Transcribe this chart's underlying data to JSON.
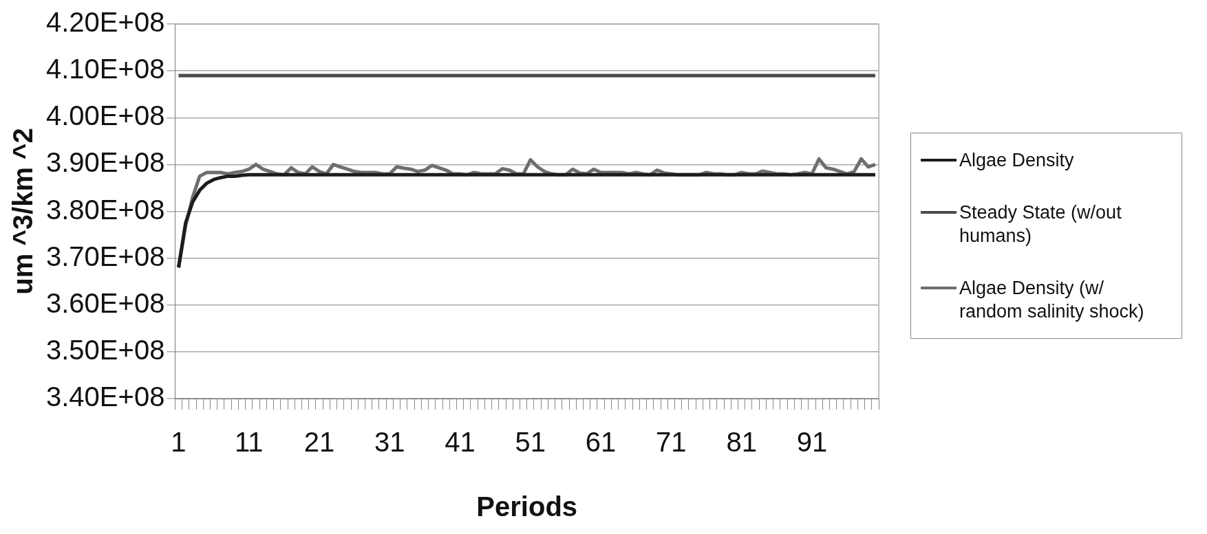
{
  "chart_data": {
    "type": "line",
    "xlabel": "Periods",
    "ylabel": "um ^3/km ^2",
    "categories": [
      "1",
      null,
      null,
      null,
      null,
      null,
      null,
      null,
      null,
      null,
      "11",
      null,
      null,
      null,
      null,
      null,
      null,
      null,
      null,
      null,
      "21",
      null,
      null,
      null,
      null,
      null,
      null,
      null,
      null,
      null,
      "31",
      null,
      null,
      null,
      null,
      null,
      null,
      null,
      null,
      null,
      "41",
      null,
      null,
      null,
      null,
      null,
      null,
      null,
      null,
      null,
      "51",
      null,
      null,
      null,
      null,
      null,
      null,
      null,
      null,
      null,
      "61",
      null,
      null,
      null,
      null,
      null,
      null,
      null,
      null,
      null,
      "71",
      null,
      null,
      null,
      null,
      null,
      null,
      null,
      null,
      null,
      "81",
      null,
      null,
      null,
      null,
      null,
      null,
      null,
      null,
      null,
      "91",
      null,
      null,
      null,
      null,
      null,
      null,
      null,
      null,
      null
    ],
    "series": [
      {
        "name": "Algae Density",
        "color": "#1c1c1c",
        "values": [
          368000000,
          377500000,
          382000000,
          384500000,
          386000000,
          386800000,
          387200000,
          387500000,
          387500000,
          387700000,
          387800000,
          387800000,
          387800000,
          387800000,
          387800000,
          387800000,
          387800000,
          387800000,
          387800000,
          387800000,
          387800000,
          387800000,
          387800000,
          387800000,
          387800000,
          387800000,
          387800000,
          387800000,
          387800000,
          387800000,
          387800000,
          387800000,
          387800000,
          387800000,
          387800000,
          387800000,
          387800000,
          387800000,
          387800000,
          387800000,
          387800000,
          387800000,
          387800000,
          387800000,
          387800000,
          387800000,
          387800000,
          387800000,
          387800000,
          387800000,
          387800000,
          387800000,
          387800000,
          387800000,
          387800000,
          387800000,
          387800000,
          387800000,
          387800000,
          387800000,
          387800000,
          387800000,
          387800000,
          387800000,
          387800000,
          387800000,
          387800000,
          387800000,
          387800000,
          387800000,
          387800000,
          387800000,
          387800000,
          387800000,
          387800000,
          387800000,
          387800000,
          387800000,
          387800000,
          387800000,
          387800000,
          387800000,
          387800000,
          387800000,
          387800000,
          387800000,
          387800000,
          387800000,
          387800000,
          387800000,
          387800000,
          387800000,
          387800000,
          387800000,
          387800000,
          387800000,
          387800000,
          387800000,
          387800000,
          387800000
        ]
      },
      {
        "name": "Steady State (w/out humans)",
        "color": "#4a4a4a",
        "values": [
          409000000,
          409000000,
          409000000,
          409000000,
          409000000,
          409000000,
          409000000,
          409000000,
          409000000,
          409000000,
          409000000,
          409000000,
          409000000,
          409000000,
          409000000,
          409000000,
          409000000,
          409000000,
          409000000,
          409000000,
          409000000,
          409000000,
          409000000,
          409000000,
          409000000,
          409000000,
          409000000,
          409000000,
          409000000,
          409000000,
          409000000,
          409000000,
          409000000,
          409000000,
          409000000,
          409000000,
          409000000,
          409000000,
          409000000,
          409000000,
          409000000,
          409000000,
          409000000,
          409000000,
          409000000,
          409000000,
          409000000,
          409000000,
          409000000,
          409000000,
          409000000,
          409000000,
          409000000,
          409000000,
          409000000,
          409000000,
          409000000,
          409000000,
          409000000,
          409000000,
          409000000,
          409000000,
          409000000,
          409000000,
          409000000,
          409000000,
          409000000,
          409000000,
          409000000,
          409000000,
          409000000,
          409000000,
          409000000,
          409000000,
          409000000,
          409000000,
          409000000,
          409000000,
          409000000,
          409000000,
          409000000,
          409000000,
          409000000,
          409000000,
          409000000,
          409000000,
          409000000,
          409000000,
          409000000,
          409000000,
          409000000,
          409000000,
          409000000,
          409000000,
          409000000,
          409000000,
          409000000,
          409000000,
          409000000,
          409000000
        ]
      },
      {
        "name": "Algae Density (w/ random salinity shock)",
        "color": "#6e6e6e",
        "values": [
          368000000,
          377000000,
          383000000,
          387500000,
          388300000,
          388300000,
          388300000,
          388000000,
          388300000,
          388500000,
          389000000,
          390000000,
          389000000,
          388500000,
          388000000,
          387800000,
          389300000,
          388300000,
          388000000,
          389500000,
          388500000,
          388000000,
          390000000,
          389500000,
          389000000,
          388500000,
          388300000,
          388300000,
          388300000,
          388000000,
          388000000,
          389500000,
          389200000,
          389000000,
          388500000,
          388800000,
          389800000,
          389300000,
          388800000,
          388000000,
          388000000,
          387800000,
          388300000,
          388000000,
          388000000,
          388000000,
          389100000,
          388800000,
          388000000,
          388000000,
          391000000,
          389500000,
          388500000,
          388000000,
          387800000,
          387800000,
          389000000,
          388200000,
          388000000,
          389000000,
          388300000,
          388300000,
          388300000,
          388300000,
          388000000,
          388300000,
          388000000,
          387800000,
          388800000,
          388200000,
          388000000,
          387800000,
          387800000,
          387800000,
          387800000,
          388300000,
          388000000,
          388000000,
          387800000,
          387800000,
          388300000,
          388000000,
          388000000,
          388600000,
          388300000,
          388000000,
          388000000,
          387800000,
          388000000,
          388300000,
          388000000,
          391200000,
          389300000,
          389000000,
          388500000,
          388000000,
          388500000,
          391200000,
          389500000,
          390000000
        ]
      }
    ],
    "ylim": [
      340000000,
      420000000
    ],
    "yticks": [
      {
        "value": 340000000,
        "label": "3.40E+08"
      },
      {
        "value": 350000000,
        "label": "3.50E+08"
      },
      {
        "value": 360000000,
        "label": "3.60E+08"
      },
      {
        "value": 370000000,
        "label": "3.70E+08"
      },
      {
        "value": 380000000,
        "label": "3.80E+08"
      },
      {
        "value": 390000000,
        "label": "3.90E+08"
      },
      {
        "value": 400000000,
        "label": "4.00E+08"
      },
      {
        "value": 410000000,
        "label": "4.10E+08"
      },
      {
        "value": 420000000,
        "label": "4.20E+08"
      }
    ],
    "grid": "y",
    "legend": "right"
  }
}
